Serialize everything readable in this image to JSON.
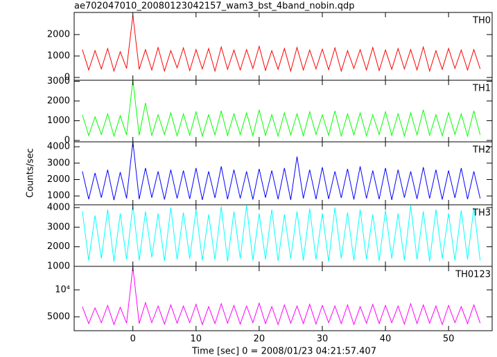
{
  "figure": {
    "title": "ae702047010_20080123042157_wam3_bst_4band_nobin.qdp",
    "ylabel": "Counts/sec",
    "xlabel": "Time [sec] 0 = 2008/01/23 04:21:57.407"
  },
  "chart_data": [
    {
      "type": "line",
      "label": "TH0",
      "color": "#ff0000",
      "log": false,
      "x": [
        -8,
        -7,
        -6,
        -5,
        -4,
        -3,
        -2,
        -1,
        0,
        1,
        2,
        3,
        4,
        5,
        6,
        7,
        8,
        9,
        10,
        11,
        12,
        13,
        14,
        15,
        16,
        17,
        18,
        19,
        20,
        21,
        22,
        23,
        24,
        25,
        26,
        27,
        28,
        29,
        30,
        31,
        32,
        33,
        34,
        35,
        36,
        37,
        38,
        39,
        40,
        41,
        42,
        43,
        44,
        45,
        46,
        47,
        48,
        49,
        50,
        51,
        52,
        53,
        54,
        55
      ],
      "values": [
        1300,
        350,
        1250,
        400,
        1350,
        300,
        1200,
        420,
        2900,
        380,
        1300,
        350,
        1400,
        300,
        1250,
        450,
        1380,
        320,
        1300,
        400,
        1350,
        300,
        1420,
        380,
        1280,
        350,
        1300,
        420,
        1450,
        330,
        1250,
        380,
        1350,
        300,
        1400,
        350,
        1280,
        400,
        1320,
        360,
        1380,
        300,
        1250,
        420,
        1300,
        350,
        1400,
        320,
        1280,
        380,
        1350,
        400,
        1300,
        350,
        1420,
        300,
        1250,
        380,
        1350,
        420,
        1280,
        350,
        1300,
        400
      ],
      "xlim": [
        -9.3,
        56.9
      ],
      "xticks": [
        0,
        10,
        20,
        30,
        40,
        50
      ],
      "ylim": [
        -130,
        3030
      ],
      "yticks": [
        0,
        1000,
        2000
      ]
    },
    {
      "type": "line",
      "label": "TH1",
      "color": "#00ff00",
      "log": false,
      "x": [
        -8,
        -7,
        -6,
        -5,
        -4,
        -3,
        -2,
        -1,
        0,
        1,
        2,
        3,
        4,
        5,
        6,
        7,
        8,
        9,
        10,
        11,
        12,
        13,
        14,
        15,
        16,
        17,
        18,
        19,
        20,
        21,
        22,
        23,
        24,
        25,
        26,
        27,
        28,
        29,
        30,
        31,
        32,
        33,
        34,
        35,
        36,
        37,
        38,
        39,
        40,
        41,
        42,
        43,
        44,
        45,
        46,
        47,
        48,
        49,
        50,
        51,
        52,
        53,
        54,
        55
      ],
      "values": [
        1300,
        250,
        1200,
        300,
        1350,
        220,
        1250,
        280,
        3050,
        260,
        1900,
        240,
        1300,
        300,
        1400,
        230,
        1350,
        260,
        1450,
        220,
        1300,
        280,
        1500,
        250,
        1350,
        300,
        1400,
        240,
        1550,
        260,
        1300,
        220,
        1400,
        280,
        1350,
        240,
        1450,
        300,
        1300,
        260,
        1500,
        220,
        1350,
        280,
        1400,
        240,
        1300,
        300,
        1450,
        250,
        1350,
        230,
        1400,
        280,
        1550,
        260,
        1300,
        240,
        1400,
        300,
        1350,
        220,
        1500,
        280
      ],
      "xlim": [
        -9.3,
        56.9
      ],
      "xticks": [
        0,
        10,
        20,
        30,
        40,
        50
      ],
      "ylim": [
        -70,
        3050
      ],
      "yticks": [
        0,
        1000,
        2000,
        3000
      ]
    },
    {
      "type": "line",
      "label": "TH2",
      "color": "#0000ff",
      "log": false,
      "x": [
        -8,
        -7,
        -6,
        -5,
        -4,
        -3,
        -2,
        -1,
        0,
        1,
        2,
        3,
        4,
        5,
        6,
        7,
        8,
        9,
        10,
        11,
        12,
        13,
        14,
        15,
        16,
        17,
        18,
        19,
        20,
        21,
        22,
        23,
        24,
        25,
        26,
        27,
        28,
        29,
        30,
        31,
        32,
        33,
        34,
        35,
        36,
        37,
        38,
        39,
        40,
        41,
        42,
        43,
        44,
        45,
        46,
        47,
        48,
        49,
        50,
        51,
        52,
        53,
        54,
        55
      ],
      "values": [
        2500,
        800,
        2400,
        900,
        2600,
        750,
        2450,
        850,
        4300,
        800,
        2700,
        900,
        2500,
        780,
        2600,
        850,
        2550,
        820,
        2700,
        760,
        2500,
        880,
        2800,
        800,
        2600,
        850,
        2500,
        780,
        2650,
        900,
        2550,
        800,
        2700,
        760,
        3400,
        850,
        2600,
        800,
        2750,
        820,
        2500,
        880,
        2650,
        780,
        2800,
        850,
        2550,
        800,
        2700,
        760,
        2600,
        900,
        2500,
        820,
        2750,
        850,
        2600,
        780,
        2550,
        880,
        2700,
        800,
        2500,
        850
      ],
      "xlim": [
        -9.3,
        56.9
      ],
      "xticks": [
        0,
        10,
        20,
        30,
        40,
        50
      ],
      "ylim": [
        460,
        4300
      ],
      "yticks": [
        1000,
        2000,
        3000,
        4000
      ]
    },
    {
      "type": "line",
      "label": "TH3",
      "color": "#00ffff",
      "log": false,
      "x": [
        -8,
        -7,
        -6,
        -5,
        -4,
        -3,
        -2,
        -1,
        0,
        1,
        2,
        3,
        4,
        5,
        6,
        7,
        8,
        9,
        10,
        11,
        12,
        13,
        14,
        15,
        16,
        17,
        18,
        19,
        20,
        21,
        22,
        23,
        24,
        25,
        26,
        27,
        28,
        29,
        30,
        31,
        32,
        33,
        34,
        35,
        36,
        37,
        38,
        39,
        40,
        41,
        42,
        43,
        44,
        45,
        46,
        47,
        48,
        49,
        50,
        51,
        52,
        53,
        54,
        55
      ],
      "values": [
        3800,
        1300,
        3600,
        1400,
        3900,
        1250,
        3700,
        1350,
        4100,
        1300,
        3800,
        1450,
        3700,
        1280,
        4000,
        1350,
        3750,
        1400,
        3900,
        1300,
        3650,
        1350,
        4050,
        1250,
        3800,
        1400,
        4100,
        1300,
        3700,
        1350,
        3900,
        1280,
        3650,
        1400,
        3800,
        1300,
        3950,
        1350,
        3700,
        1250,
        4000,
        1400,
        3750,
        1300,
        3900,
        1350,
        3650,
        1280,
        3850,
        1400,
        3700,
        1300,
        4100,
        1350,
        3800,
        1250,
        3900,
        1400,
        3700,
        1300,
        3850,
        1350,
        4000,
        1300
      ],
      "xlim": [
        -9.3,
        56.9
      ],
      "xticks": [
        0,
        10,
        20,
        30,
        40,
        50
      ],
      "ylim": [
        1000,
        4140
      ],
      "yticks": [
        1000,
        2000,
        3000,
        4000
      ]
    },
    {
      "type": "line",
      "label": "TH0123",
      "color": "#ff00ff",
      "log": true,
      "x": [
        -8,
        -7,
        -6,
        -5,
        -4,
        -3,
        -2,
        -1,
        0,
        1,
        2,
        3,
        4,
        5,
        6,
        7,
        8,
        9,
        10,
        11,
        12,
        13,
        14,
        15,
        16,
        17,
        18,
        19,
        20,
        21,
        22,
        23,
        24,
        25,
        26,
        27,
        28,
        29,
        30,
        31,
        32,
        33,
        34,
        35,
        36,
        37,
        38,
        39,
        40,
        41,
        42,
        43,
        44,
        45,
        46,
        47,
        48,
        49,
        50,
        51,
        52,
        53,
        54,
        55
      ],
      "values": [
        6500,
        4200,
        6300,
        4300,
        6700,
        4100,
        6400,
        4250,
        18000,
        4200,
        7200,
        4300,
        6600,
        4150,
        6800,
        4250,
        6600,
        4300,
        6900,
        4100,
        6500,
        4200,
        7000,
        4250,
        6700,
        4150,
        6600,
        4300,
        7100,
        4200,
        6500,
        4100,
        6800,
        4250,
        6600,
        4200,
        6900,
        4150,
        6700,
        4300,
        6600,
        4200,
        6800,
        4100,
        6500,
        4250,
        6900,
        4200,
        6700,
        4300,
        6600,
        4150,
        7000,
        4200,
        6800,
        4250,
        6600,
        4100,
        6700,
        4300,
        6500,
        4200,
        6800,
        4250
      ],
      "xlim": [
        -9.3,
        56.9
      ],
      "xticks": [
        0,
        10,
        20,
        30,
        40,
        50
      ],
      "ylim": [
        3500,
        18300
      ],
      "yticks": [
        {
          "value": 10000,
          "label": "10⁴"
        },
        5000
      ]
    }
  ]
}
